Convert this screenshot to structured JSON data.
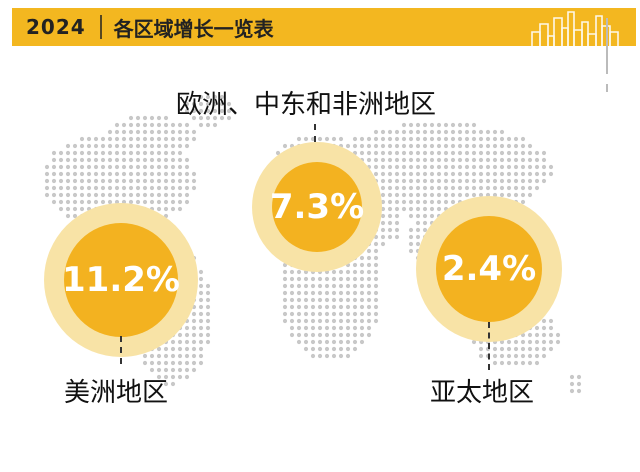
{
  "header": {
    "year": "2024",
    "title": "各区域增长一览表"
  },
  "regions": {
    "europe_mideast_africa": {
      "label": "欧洲、中东和非洲地区",
      "value": "7.3%"
    },
    "americas": {
      "label": "美洲地区",
      "value": "11.2%"
    },
    "asia_pacific": {
      "label": "亚太地区",
      "value": "2.4%"
    }
  },
  "colors": {
    "accent": "#f3b720",
    "circle": "#f3b220",
    "halo": "#f8e3a6",
    "map_dots": "#c8c8c8"
  }
}
